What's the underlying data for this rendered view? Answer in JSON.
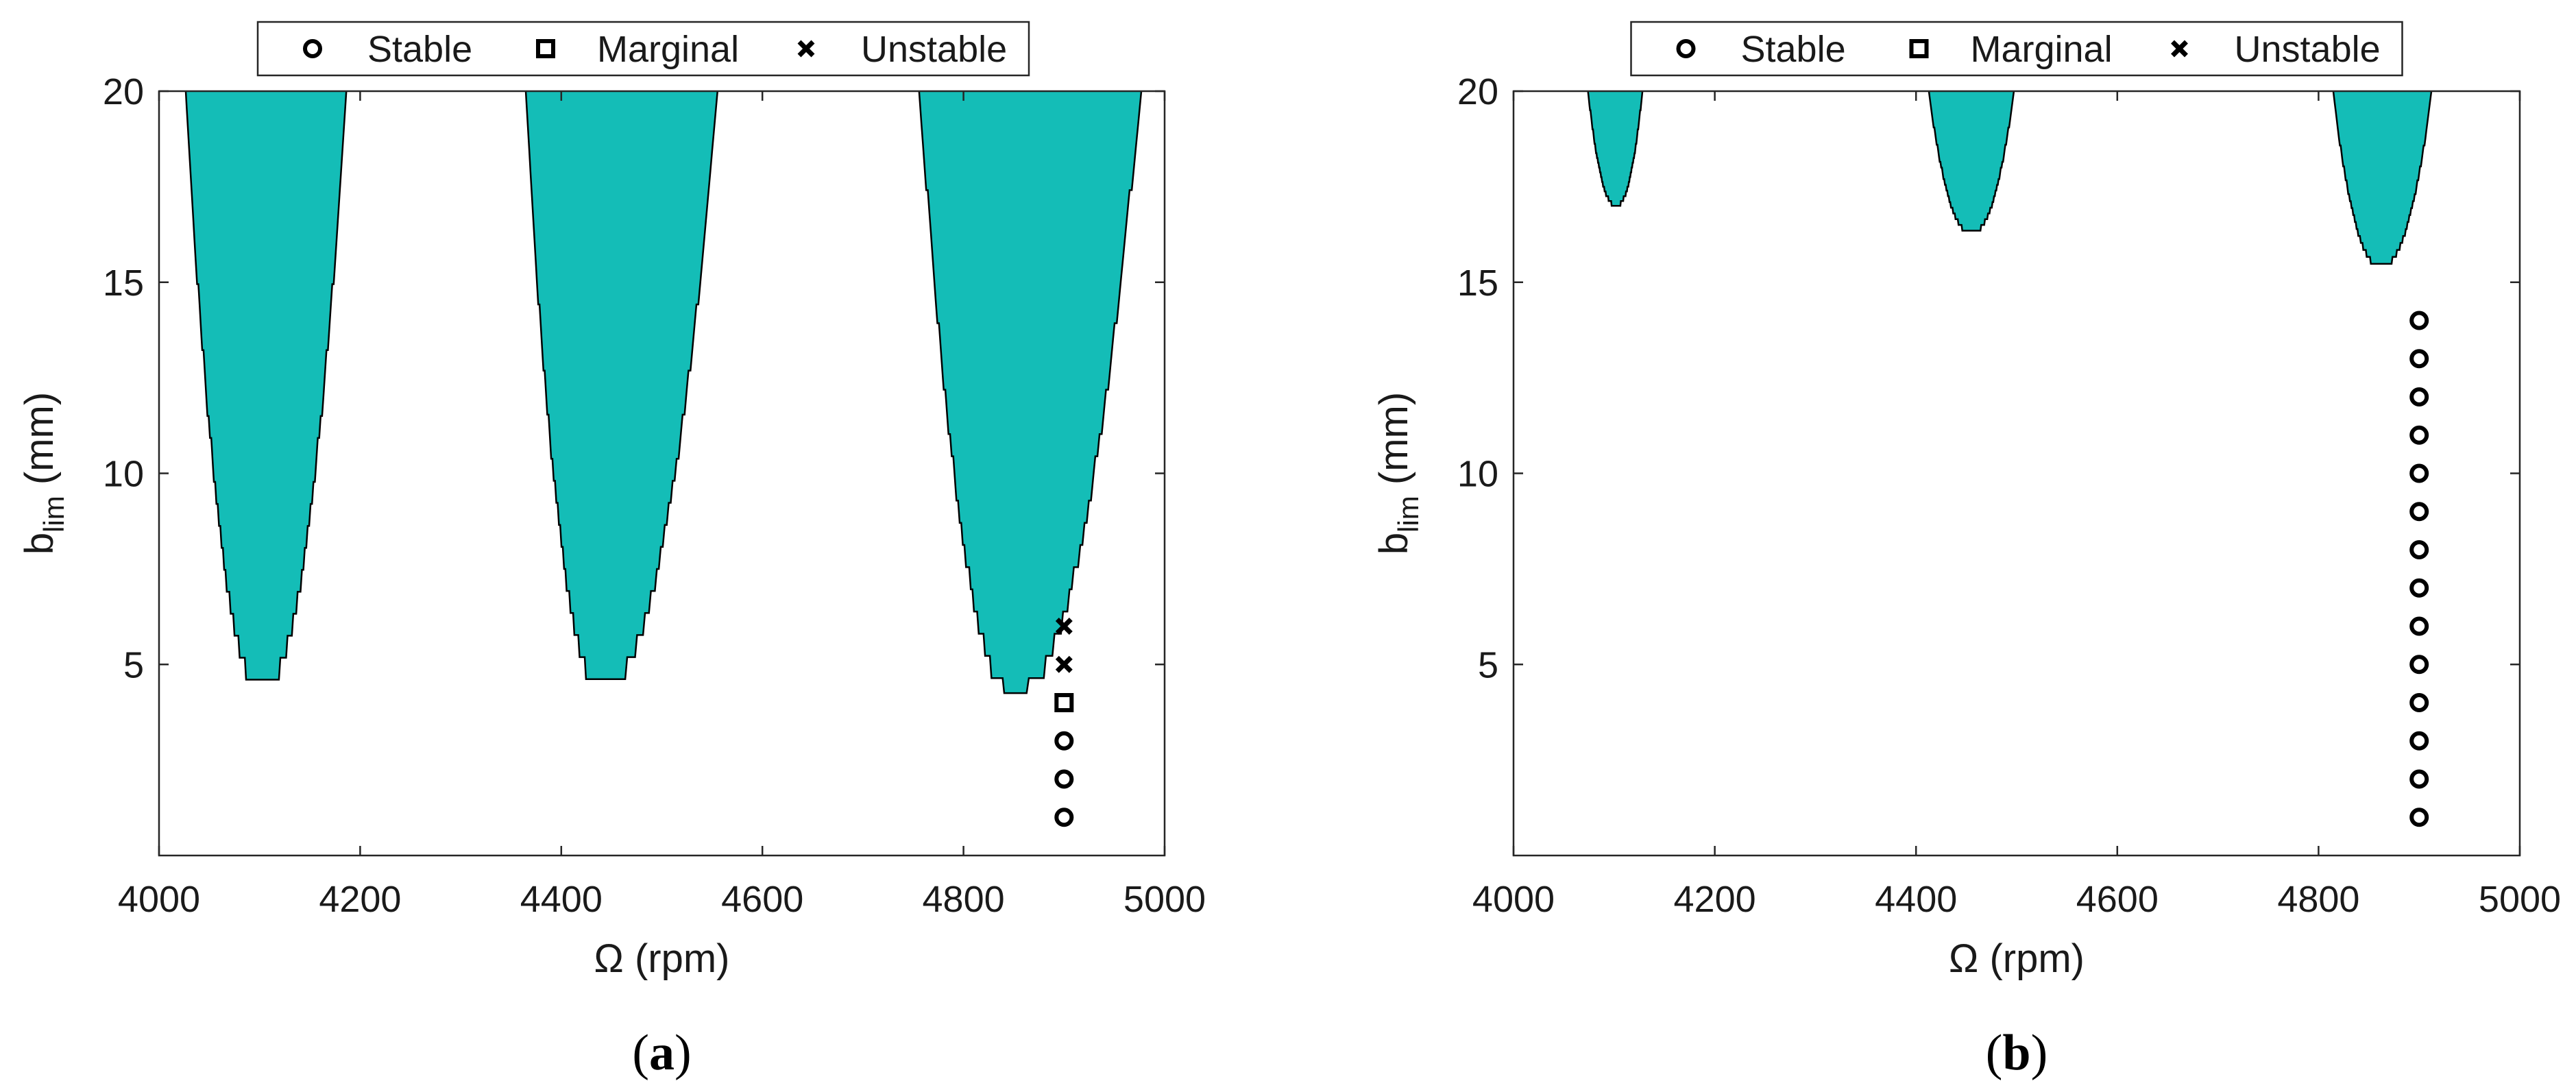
{
  "chart_data": [
    {
      "type": "area",
      "panel_label": "(a)",
      "xlabel": "Ω (rpm)",
      "ylabel_main": "b",
      "ylabel_sub": "lim",
      "ylabel_unit": " (mm)",
      "xlim": [
        4000,
        5000
      ],
      "ylim": [
        0,
        20
      ],
      "xticks": [
        4000,
        4200,
        4400,
        4600,
        4800,
        5000
      ],
      "yticks": [
        5,
        10,
        15,
        20
      ],
      "legend_position": "top-center",
      "legend": [
        {
          "label": "Stable",
          "marker": "circle"
        },
        {
          "label": "Marginal",
          "marker": "square"
        },
        {
          "label": "Unstable",
          "marker": "x"
        }
      ],
      "fill_color": "#14bdb7",
      "regions": [
        {
          "x_left": 4025,
          "x_right": 4188,
          "x_min": 4102,
          "y_min": 4.4
        },
        {
          "x_left": 4363,
          "x_right": 4558,
          "x_min": 4440,
          "y_min": 4.35
        },
        {
          "x_left": 4755,
          "x_right": 4978,
          "x_min": 4850,
          "y_min": 4.25
        }
      ],
      "points": {
        "stable": [
          [
            4900,
            1
          ],
          [
            4900,
            2
          ],
          [
            4900,
            3
          ]
        ],
        "marginal": [
          [
            4900,
            4
          ]
        ],
        "unstable": [
          [
            4900,
            5
          ],
          [
            4900,
            6
          ]
        ]
      }
    },
    {
      "type": "area",
      "panel_label": "(b)",
      "xlabel": "Ω (rpm)",
      "ylabel_main": "b",
      "ylabel_sub": "lim",
      "ylabel_unit": " (mm)",
      "xlim": [
        4000,
        5000
      ],
      "ylim": [
        0,
        20
      ],
      "xticks": [
        4000,
        4200,
        4400,
        4600,
        4800,
        5000
      ],
      "yticks": [
        5,
        10,
        15,
        20
      ],
      "legend_position": "top-center",
      "legend": [
        {
          "label": "Stable",
          "marker": "circle"
        },
        {
          "label": "Marginal",
          "marker": "square"
        },
        {
          "label": "Unstable",
          "marker": "x"
        }
      ],
      "fill_color": "#14bdb7",
      "regions": [
        {
          "x_left": 4072,
          "x_right": 4130,
          "x_min": 4102,
          "y_min": 17.0
        },
        {
          "x_left": 4410,
          "x_right": 4500,
          "x_min": 4455,
          "y_min": 16.3
        },
        {
          "x_left": 4812,
          "x_right": 4915,
          "x_min": 4862,
          "y_min": 15.4
        }
      ],
      "points": {
        "stable": [
          [
            4900,
            1
          ],
          [
            4900,
            2
          ],
          [
            4900,
            3
          ],
          [
            4900,
            4
          ],
          [
            4900,
            5
          ],
          [
            4900,
            6
          ],
          [
            4900,
            7
          ],
          [
            4900,
            8
          ],
          [
            4900,
            9
          ],
          [
            4900,
            10
          ],
          [
            4900,
            11
          ],
          [
            4900,
            12
          ],
          [
            4900,
            13
          ],
          [
            4900,
            14
          ]
        ],
        "marginal": [],
        "unstable": []
      }
    }
  ]
}
